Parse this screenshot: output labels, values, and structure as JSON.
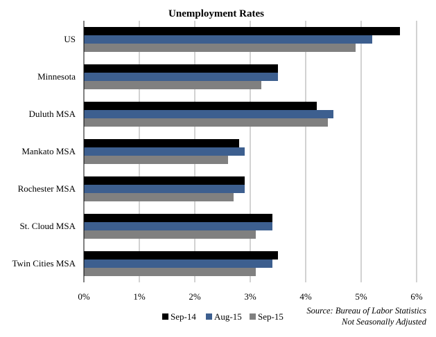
{
  "chart_data": {
    "type": "bar",
    "orientation": "horizontal",
    "title": "Unemployment Rates",
    "categories": [
      "US",
      "Minnesota",
      "Duluth MSA",
      "Mankato MSA",
      "Rochester MSA",
      "St. Cloud MSA",
      "Twin Cities MSA"
    ],
    "series": [
      {
        "name": "Sep-14",
        "color": "#000000",
        "values": [
          5.7,
          3.5,
          4.2,
          2.8,
          2.9,
          3.4,
          3.5
        ]
      },
      {
        "name": "Aug-15",
        "color": "#3d5f8f",
        "values": [
          5.2,
          3.5,
          4.5,
          2.9,
          2.9,
          3.4,
          3.4
        ]
      },
      {
        "name": "Sep-15",
        "color": "#808080",
        "values": [
          4.9,
          3.2,
          4.4,
          2.6,
          2.7,
          3.1,
          3.1
        ]
      }
    ],
    "xlim": [
      0,
      6
    ],
    "xticks": [
      "0%",
      "1%",
      "2%",
      "3%",
      "4%",
      "5%",
      "6%"
    ],
    "grid": "vertical",
    "legend_position": "bottom"
  },
  "source": {
    "line1": "Source: Bureau of Labor Statistics",
    "line2": "Not Seasonally Adjusted"
  }
}
